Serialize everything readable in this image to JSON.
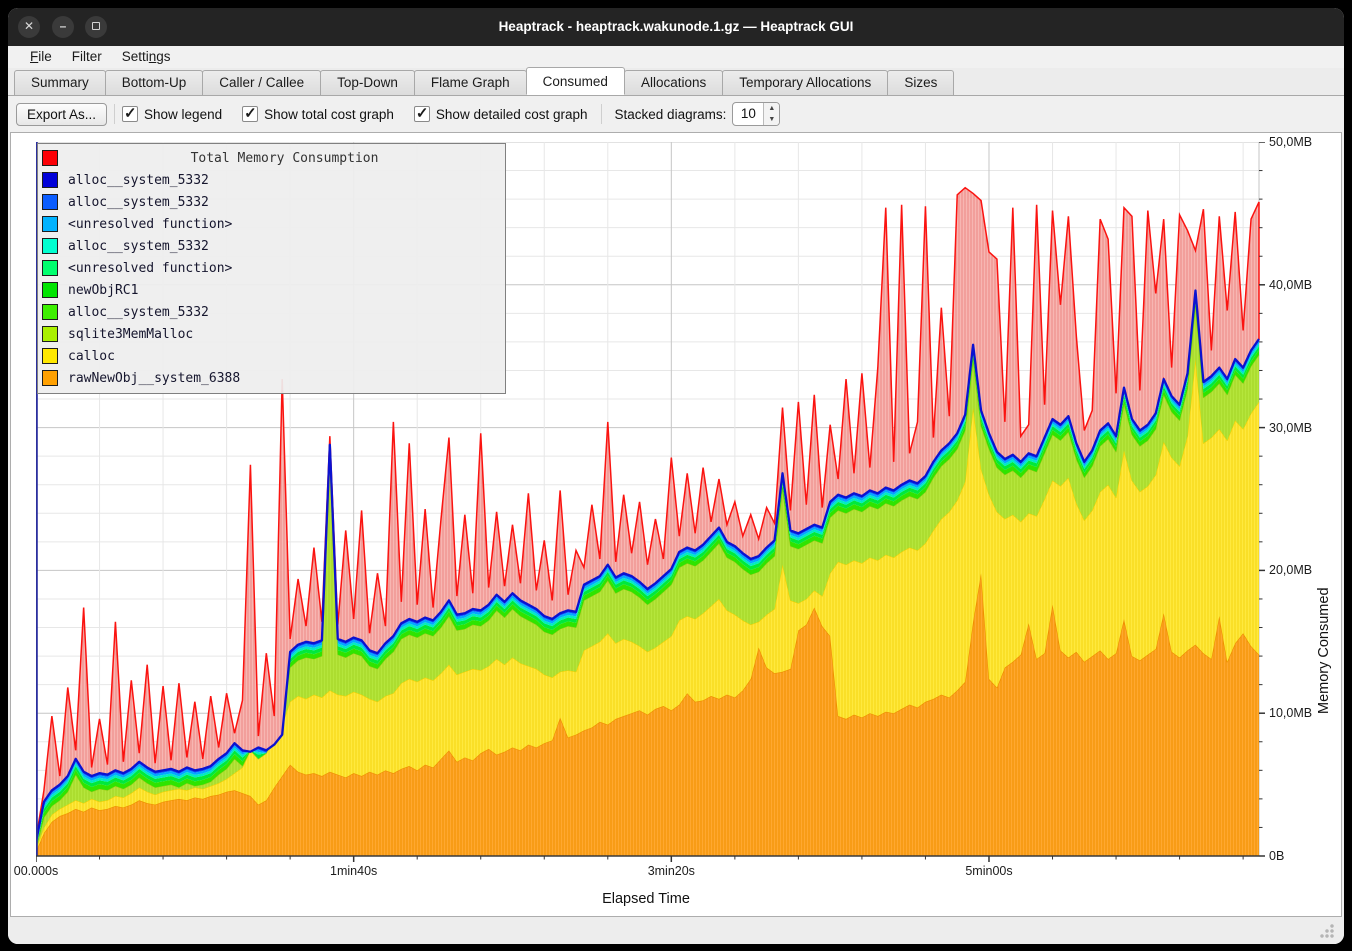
{
  "window": {
    "title": "Heaptrack - heaptrack.wakunode.1.gz — Heaptrack GUI"
  },
  "menu": {
    "items": [
      {
        "label": "File",
        "underline": 0
      },
      {
        "label": "Filter",
        "underline": -1
      },
      {
        "label": "Settings",
        "underline": 5
      }
    ]
  },
  "tabs": {
    "active": "Consumed",
    "items": [
      {
        "label": "Summary"
      },
      {
        "label": "Bottom-Up"
      },
      {
        "label": "Caller / Callee"
      },
      {
        "label": "Top-Down"
      },
      {
        "label": "Flame Graph"
      },
      {
        "label": "Consumed"
      },
      {
        "label": "Allocations"
      },
      {
        "label": "Temporary Allocations"
      },
      {
        "label": "Sizes"
      }
    ]
  },
  "toolbar": {
    "export_label": "Export As...",
    "checkboxes": [
      {
        "label": "Show legend",
        "checked": true
      },
      {
        "label": "Show total cost graph",
        "checked": true
      },
      {
        "label": "Show detailed cost graph",
        "checked": true
      }
    ],
    "stacked_label": "Stacked diagrams:",
    "stacked_value": "10"
  },
  "chart_data": {
    "type": "area",
    "title": "Total Memory Consumption",
    "xlabel": "Elapsed Time",
    "ylabel": "Memory Consumed",
    "x_ticks": [
      "00.000s",
      "1min40s",
      "3min20s",
      "5min00s"
    ],
    "x_tick_seconds": [
      0,
      100,
      200,
      300
    ],
    "y_ticks": [
      "0B",
      "10,0MB",
      "20,0MB",
      "30,0MB",
      "40,0MB",
      "50,0MB"
    ],
    "y_tick_mb": [
      0,
      10,
      20,
      30,
      40,
      50
    ],
    "xlim_seconds": [
      0,
      385
    ],
    "ylim": [
      0,
      50
    ],
    "x_step_seconds": 2.5,
    "grid": {
      "minor_step_seconds": 20,
      "major_step_seconds": 100,
      "minor_step_mb": 2,
      "major_step_mb": 10,
      "minor_color": "#e7e7e7",
      "major_color": "#c6c6c6"
    },
    "legend_rows": [
      {
        "label": "Total Memory Consumption",
        "color": "#fb0006",
        "is_title": true
      },
      {
        "label": "alloc__system_5332",
        "color": "#0000d7"
      },
      {
        "label": "alloc__system_5332",
        "color": "#0a5cff"
      },
      {
        "label": "<unresolved function>",
        "color": "#00b2ff"
      },
      {
        "label": "alloc__system_5332",
        "color": "#00ffd0"
      },
      {
        "label": "<unresolved function>",
        "color": "#00ff6e"
      },
      {
        "label": "newObjRC1",
        "color": "#00e400"
      },
      {
        "label": "alloc__system_5332",
        "color": "#3cf000"
      },
      {
        "label": "sqlite3MemMalloc",
        "color": "#aaf000"
      },
      {
        "label": "calloc",
        "color": "#ffe800"
      },
      {
        "label": "rawNewObj__system_6388",
        "color": "#ffa000"
      }
    ],
    "thin_bands": {
      "total_offset_mb": 1.1,
      "bands": [
        {
          "name": "alloc__system_5332",
          "color": "#2fe400",
          "offset_top_mb": 0.77
        },
        {
          "name": "newObjRC1",
          "color": "#00e93c",
          "offset_top_mb": 0.5
        },
        {
          "name": "<unresolved function>",
          "color": "#00ecc2",
          "offset_top_mb": 0.32
        },
        {
          "name": "<unresolved function>",
          "color": "#00a9ff",
          "offset_top_mb": 0.16
        },
        {
          "name": "alloc__system_5332",
          "color": "#0757ff",
          "offset_top_mb": 0.0
        }
      ]
    },
    "series": [
      {
        "name": "rawNewObj__system_6388",
        "role": "orange",
        "fill": "#ffa830",
        "stripe": "#f29100",
        "edge": "#ee8e00",
        "values": [
          0.3,
          1.6,
          2.4,
          2.8,
          3.0,
          3.3,
          3.1,
          3.4,
          3.2,
          3.3,
          3.5,
          3.4,
          3.6,
          3.9,
          3.7,
          3.6,
          3.8,
          3.9,
          4.0,
          3.9,
          4.1,
          4.0,
          4.2,
          4.3,
          4.5,
          4.6,
          4.4,
          4.2,
          3.6,
          3.9,
          4.8,
          5.6,
          6.4,
          5.9,
          5.7,
          5.8,
          5.6,
          5.9,
          5.7,
          5.5,
          5.8,
          5.6,
          5.9,
          5.7,
          6.0,
          5.8,
          6.1,
          6.3,
          6.0,
          6.4,
          6.2,
          6.8,
          7.4,
          6.6,
          6.9,
          6.7,
          7.2,
          7.5,
          7.1,
          7.3,
          7.6,
          7.4,
          7.8,
          7.6,
          7.9,
          8.1,
          9.7,
          8.3,
          8.5,
          8.8,
          9.0,
          9.4,
          9.2,
          9.6,
          9.8,
          10.0,
          10.2,
          9.9,
          10.3,
          10.5,
          10.2,
          10.6,
          11.4,
          10.8,
          10.9,
          11.2,
          11.0,
          11.3,
          11.1,
          11.6,
          12.4,
          14.6,
          13.2,
          12.8,
          12.9,
          13.1,
          15.8,
          16.2,
          17.4,
          16.1,
          15.4,
          9.8,
          9.6,
          9.9,
          9.7,
          10.0,
          9.8,
          10.1,
          10.0,
          10.3,
          10.6,
          10.4,
          10.8,
          11.0,
          11.3,
          11.1,
          11.6,
          12.2,
          16.4,
          19.8,
          12.4,
          11.8,
          13.2,
          13.6,
          14.1,
          16.3,
          13.8,
          14.2,
          17.6,
          14.4,
          13.9,
          14.3,
          13.6,
          14.0,
          14.4,
          13.8,
          14.2,
          16.6,
          14.0,
          13.7,
          14.1,
          14.5,
          17.0,
          14.3,
          13.9,
          14.4,
          14.8,
          14.2,
          13.8,
          16.8,
          13.6,
          14.9,
          15.6,
          14.7,
          14.1
        ]
      },
      {
        "name": "calloc",
        "role": "yellow",
        "fill": "#ffe93e",
        "stripe": "#f6d714",
        "edge": "#f3d000",
        "values": [
          0.5,
          2.0,
          2.9,
          3.3,
          3.6,
          3.9,
          3.7,
          4.0,
          3.8,
          3.9,
          4.2,
          4.1,
          4.4,
          4.8,
          4.5,
          4.3,
          4.5,
          4.6,
          4.7,
          4.6,
          4.8,
          4.7,
          4.9,
          5.1,
          5.4,
          5.8,
          6.2,
          7.4,
          6.8,
          7.2,
          8.4,
          9.2,
          10.8,
          11.2,
          11.0,
          11.3,
          11.1,
          11.6,
          11.3,
          11.2,
          11.5,
          11.3,
          11.0,
          10.8,
          11.2,
          11.4,
          12.1,
          12.4,
          12.2,
          12.5,
          12.3,
          12.8,
          13.4,
          12.7,
          12.9,
          13.1,
          13.0,
          13.3,
          13.8,
          13.4,
          13.9,
          13.5,
          13.3,
          13.1,
          12.7,
          12.5,
          12.9,
          13.0,
          12.9,
          14.4,
          14.7,
          15.0,
          15.6,
          14.9,
          15.2,
          15.0,
          14.7,
          14.3,
          14.6,
          15.0,
          15.4,
          16.5,
          16.8,
          16.6,
          17.0,
          17.5,
          18.0,
          17.2,
          16.9,
          16.5,
          16.2,
          16.4,
          16.9,
          17.3,
          20.4,
          17.9,
          17.7,
          18.0,
          18.6,
          18.2,
          19.8,
          20.6,
          20.4,
          20.7,
          20.5,
          20.9,
          20.7,
          21.1,
          20.9,
          21.3,
          21.6,
          21.4,
          21.9,
          22.8,
          23.6,
          24.1,
          24.9,
          26.2,
          31.4,
          27.1,
          25.3,
          24.1,
          23.6,
          23.9,
          23.4,
          24.0,
          23.8,
          25.0,
          26.3,
          25.9,
          26.5,
          24.7,
          23.5,
          24.2,
          25.5,
          26.0,
          25.1,
          28.4,
          26.3,
          25.5,
          25.9,
          26.7,
          29.0,
          27.9,
          27.3,
          29.4,
          34.8,
          28.9,
          29.3,
          29.9,
          29.1,
          30.5,
          29.9,
          31.0,
          31.8
        ]
      },
      {
        "name": "sqlite3MemMalloc",
        "role": "yellowgreen",
        "fill": "#b5e63c",
        "stripe": "#a6d626",
        "edge": "#98cb17"
      },
      {
        "name": "alloc__system_5332",
        "role": "stack-top-line",
        "color": "#0b12d0",
        "values": [
          1.0,
          3.8,
          4.6,
          5.0,
          5.6,
          6.8,
          5.9,
          5.6,
          5.8,
          5.7,
          6.0,
          5.8,
          6.1,
          6.6,
          6.2,
          5.9,
          6.0,
          6.1,
          5.9,
          6.2,
          6.0,
          6.1,
          6.3,
          6.8,
          7.2,
          7.9,
          7.4,
          7.3,
          7.6,
          7.4,
          7.8,
          8.5,
          14.3,
          14.8,
          15.0,
          14.9,
          15.1,
          28.8,
          15.2,
          15.0,
          15.3,
          15.1,
          14.4,
          14.2,
          14.9,
          15.4,
          16.3,
          16.6,
          16.4,
          16.7,
          16.5,
          17.1,
          17.9,
          16.9,
          17.0,
          17.3,
          17.2,
          17.6,
          18.3,
          17.8,
          18.4,
          17.9,
          17.6,
          17.3,
          16.8,
          16.6,
          17.0,
          17.2,
          17.1,
          19.0,
          19.3,
          19.6,
          20.4,
          19.5,
          19.8,
          19.6,
          19.2,
          18.7,
          19.1,
          19.6,
          20.1,
          21.3,
          21.6,
          21.4,
          21.8,
          22.4,
          23.0,
          22.0,
          21.7,
          21.2,
          20.8,
          21.0,
          21.6,
          22.1,
          26.8,
          22.8,
          22.6,
          22.9,
          23.2,
          23.0,
          24.8,
          25.3,
          25.1,
          25.4,
          25.2,
          25.6,
          25.4,
          25.8,
          25.6,
          26.0,
          26.3,
          26.1,
          26.6,
          27.6,
          28.4,
          28.9,
          29.6,
          30.9,
          35.8,
          31.2,
          29.6,
          28.3,
          27.8,
          28.1,
          27.6,
          28.2,
          28.0,
          29.3,
          30.6,
          30.2,
          30.8,
          28.9,
          27.6,
          28.4,
          29.8,
          30.3,
          29.4,
          32.8,
          30.6,
          29.8,
          30.2,
          31.0,
          33.4,
          32.2,
          31.6,
          33.8,
          39.6,
          33.2,
          33.6,
          34.2,
          33.4,
          34.8,
          34.2,
          35.4,
          36.2
        ]
      },
      {
        "name": "Total Memory Consumption",
        "role": "total",
        "fill": "#f7b6b2",
        "stripe": "#ef8c88",
        "edge": "#fb1310",
        "values": [
          1.2,
          4.6,
          9.8,
          5.6,
          11.8,
          7.4,
          17.4,
          6.2,
          9.6,
          6.4,
          16.4,
          6.6,
          12.3,
          7.2,
          13.4,
          6.5,
          11.9,
          6.7,
          12.1,
          6.9,
          10.8,
          6.8,
          11.2,
          7.6,
          11.4,
          8.6,
          10.9,
          27.4,
          8.4,
          14.2,
          9.8,
          33.4,
          15.2,
          19.4,
          16.1,
          21.6,
          16.4,
          29.4,
          16.2,
          22.8,
          16.6,
          24.2,
          15.6,
          19.8,
          16.1,
          30.4,
          17.8,
          28.9,
          17.6,
          24.3,
          17.4,
          23.6,
          29.3,
          18.2,
          23.9,
          18.4,
          29.6,
          18.8,
          24.1,
          18.9,
          23.2,
          19.1,
          25.4,
          18.6,
          22.1,
          17.9,
          25.6,
          18.3,
          21.4,
          20.2,
          24.6,
          20.8,
          30.4,
          20.6,
          25.3,
          21.2,
          24.8,
          20.4,
          23.6,
          20.8,
          27.9,
          22.4,
          26.8,
          22.6,
          27.2,
          23.4,
          26.4,
          23.2,
          24.8,
          22.4,
          23.9,
          22.2,
          24.4,
          23.3,
          31.4,
          24.2,
          31.8,
          24.6,
          32.3,
          24.4,
          30.2,
          26.4,
          33.4,
          26.8,
          33.8,
          27.2,
          34.2,
          45.4,
          27.6,
          45.6,
          28.2,
          30.4,
          45.5,
          29.3,
          38.4,
          30.8,
          46.3,
          46.8,
          46.4,
          45.9,
          42.3,
          41.8,
          30.4,
          45.4,
          29.4,
          30.2,
          45.6,
          31.6,
          45.2,
          38.6,
          44.8,
          36.4,
          29.8,
          31.2,
          44.6,
          43.2,
          32.4,
          45.4,
          44.8,
          32.6,
          45.2,
          39.4,
          44.6,
          34.2,
          44.9,
          43.8,
          42.4,
          45.3,
          35.4,
          44.8,
          38.2,
          45.1,
          36.8,
          44.6,
          45.8
        ]
      }
    ]
  }
}
